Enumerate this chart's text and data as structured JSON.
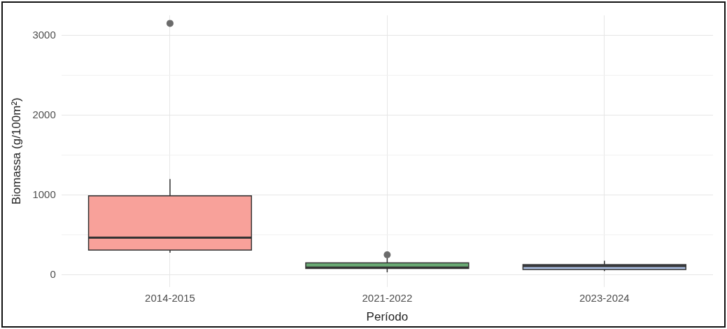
{
  "chart_data": {
    "type": "box",
    "xlabel": "Período",
    "ylabel": "Biomassa (g/100m²)",
    "categories": [
      "2014-2015",
      "2021-2022",
      "2023-2024"
    ],
    "colors": [
      "#f8a19a",
      "#6aaa74",
      "#a9bde0"
    ],
    "boxes": [
      {
        "low": 276,
        "q1": 310,
        "median": 464,
        "q3": 990,
        "high": 1200,
        "outliers": [
          3150
        ]
      },
      {
        "low": 30,
        "q1": 80,
        "median": 90,
        "q3": 150,
        "high": 210,
        "outliers": [
          250
        ]
      },
      {
        "low": 47,
        "q1": 65,
        "median": 110,
        "q3": 127,
        "high": 175
      }
    ],
    "ylim": [
      -150,
      3250
    ],
    "yticks": [
      0,
      {
        "value": 500,
        "label": null
      },
      1000,
      {
        "value": 1500,
        "label": null
      },
      2000,
      {
        "value": 2500,
        "label": null
      },
      3000
    ],
    "grid": true,
    "legend": false
  }
}
